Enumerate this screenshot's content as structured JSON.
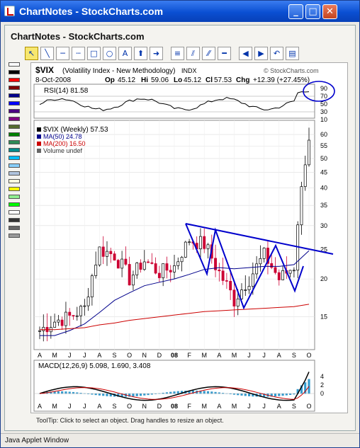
{
  "window": {
    "title": "ChartNotes - StockCharts.com"
  },
  "app": {
    "title": "ChartNotes - StockCharts.com"
  },
  "toolbar": {
    "tools": [
      "select-tool",
      "line-tool",
      "horizontal-line-tool",
      "dash-line-tool",
      "rectangle-tool",
      "ellipse-tool",
      "text-tool",
      "arrow-up-tool",
      "arrow-right-tool",
      "lines-tool",
      "fan-tool",
      "zigzag-tool",
      "minus-tool",
      "prev-tool",
      "next-tool",
      "undo-tool",
      "properties-tool"
    ]
  },
  "palette": {
    "colors": [
      "#ffffff",
      "#000000",
      "#ff0000",
      "#800000",
      "#00008b",
      "#0000ff",
      "#4b0082",
      "#800080",
      "#556b2f",
      "#008000",
      "#2e8b57",
      "#008b8b",
      "#00bfff",
      "#87cefa",
      "#b0c4de",
      "#ffffe0",
      "#ffff00",
      "#90ee90",
      "#00ff00",
      "#ffffff",
      "#333333",
      "#666666",
      "#999999"
    ]
  },
  "chart": {
    "symbol": "$VIX",
    "name": "(Volatility Index - New Methodology)",
    "exchange": "INDX",
    "watermark": "© StockCharts.com",
    "date": "8-Oct-2008",
    "ohlc": {
      "op_label": "Op",
      "op": "45.12",
      "hi_label": "Hi",
      "hi": "59.06",
      "lo_label": "Lo",
      "lo": "45.12",
      "cl_label": "Cl",
      "cl": "57.53",
      "chg_label": "Chg",
      "chg": "+12.39 (+27.45%)"
    },
    "rsi_label": "RSI(14) 81.58",
    "rsi_levels": [
      "90",
      "70",
      "50",
      "30",
      "10"
    ],
    "price_legend": [
      "$VIX (Weekly) 57.53",
      "MA(50) 24.78",
      "MA(200) 16.50",
      "Volume undef"
    ],
    "price_ticks": [
      "60",
      "55",
      "50",
      "45",
      "40",
      "35",
      "30",
      "25",
      "20",
      "15"
    ],
    "month_labels": [
      "A",
      "M",
      "J",
      "J",
      "A",
      "S",
      "O",
      "N",
      "D",
      "08",
      "F",
      "M",
      "A",
      "M",
      "J",
      "J",
      "A",
      "S",
      "O"
    ],
    "macd_label": "MACD(12,26,9) 5.098, 1.690, 3.408",
    "macd_ticks": [
      "4",
      "2",
      "0"
    ],
    "colors": {
      "up": "#000000",
      "down": "#cc0033",
      "ma50": "#00008b",
      "ma200": "#cc0000",
      "trend": "#0000cc",
      "signal": "#cc0000",
      "hist": "#3399cc"
    }
  },
  "chart_data": {
    "type": "line",
    "title": "$VIX (Volatility Index - New Methodology) INDX",
    "x": [
      "A",
      "M",
      "J",
      "J",
      "A",
      "S",
      "O",
      "N",
      "D",
      "08",
      "F",
      "M",
      "A",
      "M",
      "J",
      "J",
      "A",
      "S",
      "O"
    ],
    "series": [
      {
        "name": "$VIX (Weekly)",
        "values": [
          13.5,
          14.5,
          15,
          16,
          25,
          24,
          20,
          23,
          21,
          22,
          27,
          26,
          21,
          17,
          20,
          24,
          20,
          22,
          57.5
        ]
      },
      {
        "name": "MA(50)",
        "values": [
          13,
          13,
          13.5,
          14.2,
          15.5,
          17,
          18,
          19,
          19.5,
          20,
          20.7,
          21.5,
          21.8,
          21.6,
          21.8,
          22,
          22,
          22.3,
          24.78
        ]
      },
      {
        "name": "MA(200)",
        "values": [
          13.6,
          13.6,
          13.7,
          13.8,
          14.1,
          14.3,
          14.6,
          14.8,
          15,
          15.2,
          15.4,
          15.6,
          15.7,
          15.8,
          15.9,
          16,
          16.1,
          16.2,
          16.5
        ]
      }
    ],
    "ylim": [
      12,
      62
    ],
    "ylabel": "",
    "xlabel": "",
    "rsi": {
      "label": "RSI(14)",
      "last": 81.58
    },
    "macd": {
      "params": "12,26,9",
      "macd": 5.098,
      "signal": 1.69,
      "histogram": 3.408
    }
  }
}
